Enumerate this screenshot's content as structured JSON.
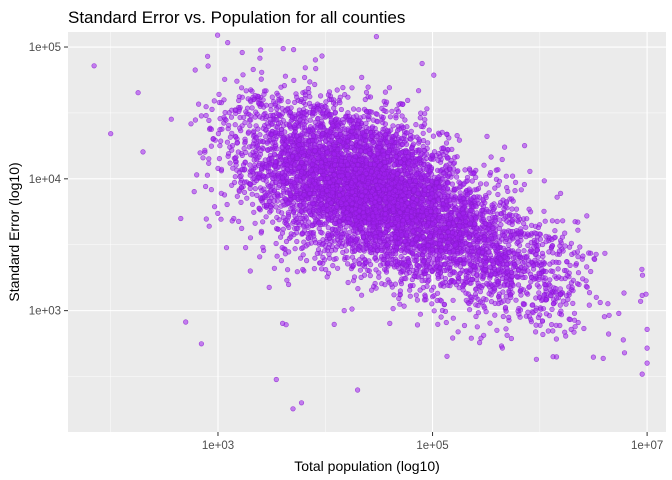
{
  "chart_data": {
    "type": "scatter",
    "title": "Standard Error vs. Population for all counties",
    "xlabel": "Total population (log10)",
    "ylabel": "Standard Error (log10)",
    "x_scale": "log10",
    "y_scale": "log10",
    "xlim": [
      40,
      15000000
    ],
    "ylim": [
      120,
      130000
    ],
    "x_ticks": [
      {
        "value": 1000,
        "label": "1e+03"
      },
      {
        "value": 100000,
        "label": "1e+05"
      },
      {
        "value": 10000000,
        "label": "1e+07"
      }
    ],
    "y_ticks": [
      {
        "value": 1000,
        "label": "1e+03"
      },
      {
        "value": 10000,
        "label": "1e+04"
      },
      {
        "value": 100000,
        "label": "1e+05"
      }
    ],
    "grid": true,
    "legend": "none",
    "point_color": "#a020f0",
    "point_outline": "#8a1ad0",
    "point_opacity": 0.55,
    "points": [
      [
        70,
        72000
      ],
      [
        100,
        22000
      ],
      [
        180,
        45000
      ],
      [
        200,
        16000
      ],
      [
        500,
        820
      ],
      [
        700,
        560
      ],
      [
        800,
        85000
      ],
      [
        1500,
        55000
      ],
      [
        2500,
        95000
      ],
      [
        3500,
        300
      ],
      [
        5000,
        180
      ],
      [
        6000,
        200
      ],
      [
        30000,
        120000
      ],
      [
        80000,
        75000
      ],
      [
        9000000,
        330
      ],
      [
        10000000,
        400
      ],
      [
        10000000,
        520
      ],
      [
        10000000,
        720
      ],
      [
        6000000,
        600
      ],
      [
        4000000,
        900
      ],
      [
        1500000,
        1800
      ],
      [
        2000000,
        1500
      ],
      [
        800000,
        900
      ],
      [
        1200000,
        700
      ],
      [
        300000,
        650
      ],
      [
        600000,
        1200
      ],
      [
        8000,
        2500
      ],
      [
        20000,
        250
      ],
      [
        3000,
        1500
      ],
      [
        2000,
        2000
      ],
      [
        1200,
        3000
      ],
      [
        4000,
        800
      ],
      [
        15000,
        1000
      ],
      [
        40000,
        800
      ],
      [
        600,
        8000
      ],
      [
        450,
        5000
      ],
      [
        700,
        30000
      ],
      [
        900,
        20000
      ],
      [
        1000,
        12000
      ]
    ],
    "cloud": [
      {
        "cx": 20000,
        "cy": 9000,
        "sx": 0.43,
        "sy": 0.3,
        "rho": -0.3,
        "n": 2600
      },
      {
        "cx": 60000,
        "cy": 6000,
        "sx": 0.4,
        "sy": 0.27,
        "rho": -0.35,
        "n": 1800
      },
      {
        "cx": 250000,
        "cy": 3000,
        "sx": 0.38,
        "sy": 0.26,
        "rho": -0.3,
        "n": 900
      },
      {
        "cx": 8000,
        "cy": 12000,
        "sx": 0.35,
        "sy": 0.3,
        "rho": -0.2,
        "n": 900
      },
      {
        "cx": 1000000,
        "cy": 2000,
        "sx": 0.3,
        "sy": 0.24,
        "rho": -0.2,
        "n": 280
      },
      {
        "cx": 2000,
        "cy": 16000,
        "sx": 0.25,
        "sy": 0.28,
        "rho": 0.0,
        "n": 200
      }
    ]
  }
}
